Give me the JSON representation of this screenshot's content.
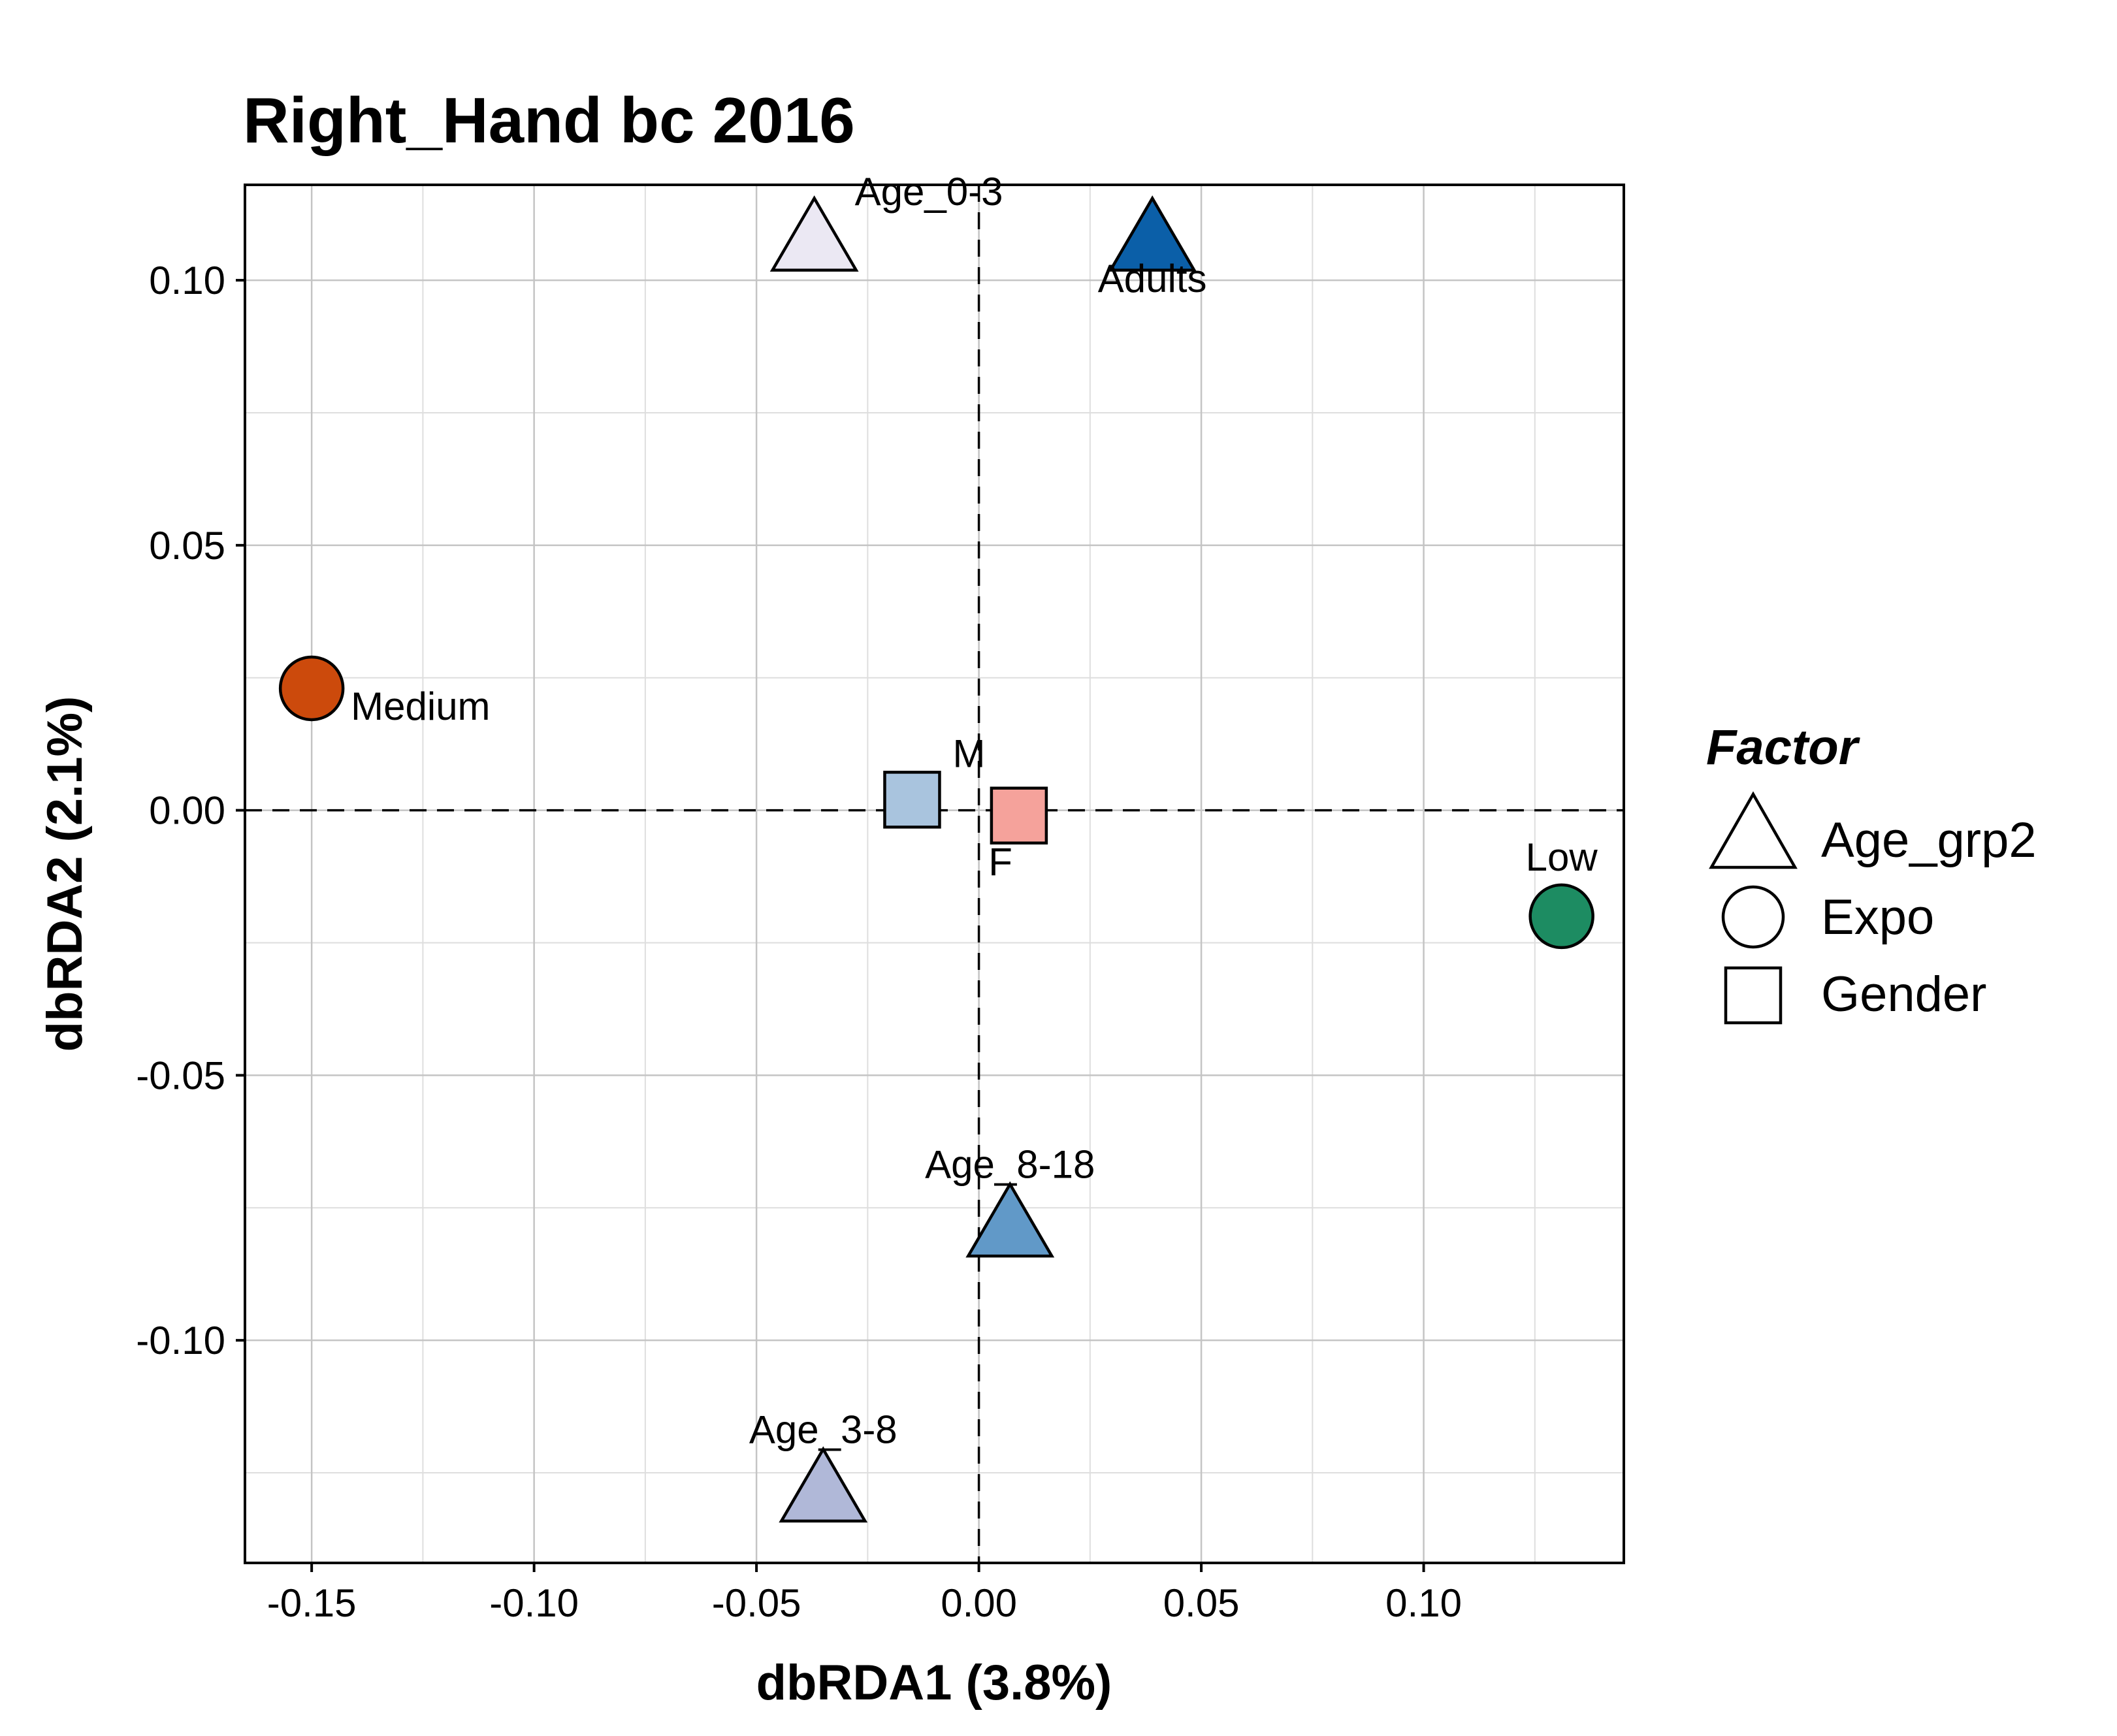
{
  "chart_data": {
    "type": "scatter",
    "title": "Right_Hand bc 2016",
    "xlabel": "dbRDA1 (3.8%)",
    "ylabel": "dbRDA2 (2.1%)",
    "xlim": [
      -0.165,
      0.145
    ],
    "ylim": [
      -0.142,
      0.118
    ],
    "x_ticks": [
      -0.15,
      -0.1,
      -0.05,
      0.0,
      0.05,
      0.1
    ],
    "x_tick_labels": [
      "-0.15",
      "-0.10",
      "-0.05",
      "0.00",
      "0.05",
      "0.10"
    ],
    "y_ticks": [
      -0.1,
      -0.05,
      0.0,
      0.05,
      0.1
    ],
    "y_tick_labels": [
      "-0.10",
      "-0.05",
      "0.00",
      "0.05",
      "0.10"
    ],
    "grid": true,
    "zero_lines": true,
    "points": [
      {
        "label": "Age_0-3",
        "x": -0.037,
        "y": 0.108,
        "factor": "Age_grp2",
        "shape": "triangle",
        "color": "#ebe8f3",
        "label_pos": "upper-right"
      },
      {
        "label": "Adults",
        "x": 0.039,
        "y": 0.108,
        "factor": "Age_grp2",
        "shape": "triangle",
        "color": "#0b5fa8",
        "label_pos": "lower-left"
      },
      {
        "label": "Age_8-18",
        "x": 0.007,
        "y": -0.078,
        "factor": "Age_grp2",
        "shape": "triangle",
        "color": "#6199c8",
        "label_pos": "top"
      },
      {
        "label": "Age_3-8",
        "x": -0.035,
        "y": -0.128,
        "factor": "Age_grp2",
        "shape": "triangle",
        "color": "#b0b8d8",
        "label_pos": "top"
      },
      {
        "label": "Medium",
        "x": -0.15,
        "y": 0.023,
        "factor": "Expo",
        "shape": "circle",
        "color": "#cc4a0c",
        "label_pos": "lower-right"
      },
      {
        "label": "Low",
        "x": 0.131,
        "y": -0.02,
        "factor": "Expo",
        "shape": "circle",
        "color": "#1d8c62",
        "label_pos": "top"
      },
      {
        "label": "M",
        "x": -0.015,
        "y": 0.002,
        "factor": "Gender",
        "shape": "square",
        "color": "#a9c4de",
        "label_pos": "upper-right"
      },
      {
        "label": "F",
        "x": 0.009,
        "y": -0.001,
        "factor": "Gender",
        "shape": "square",
        "color": "#f5a29b",
        "label_pos": "lower-left"
      }
    ],
    "legend": {
      "title": "Factor",
      "placement": "right",
      "items": [
        {
          "label": "Age_grp2",
          "shape": "triangle"
        },
        {
          "label": "Expo",
          "shape": "circle"
        },
        {
          "label": "Gender",
          "shape": "square"
        }
      ]
    }
  }
}
